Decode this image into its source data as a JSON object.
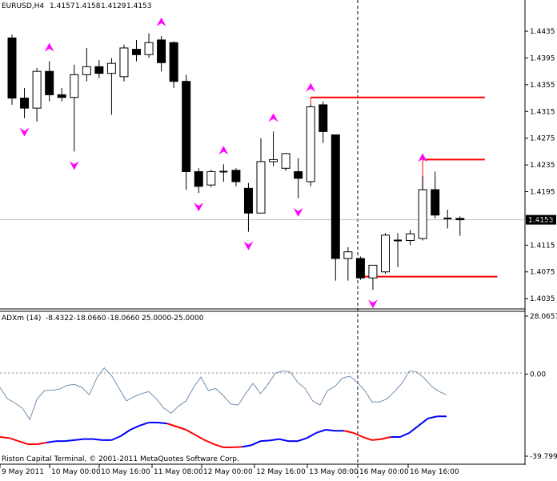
{
  "header": {
    "symbol": "EURUSD,H4",
    "ohlc": [
      "1.4157",
      "1.4158",
      "1.4129",
      "1.4153"
    ]
  },
  "indicator_header": {
    "name": "ADXm (14)",
    "values": [
      "-8.4322",
      "-18.0660",
      "-18.0660",
      "25.0000",
      "-25.0000"
    ]
  },
  "copyright": "Riston Capital Terminal, © 2001-2011 MetaQuotes Software Corp.",
  "colors": {
    "background": "#ffffff",
    "bull_candle": "#ffffff",
    "bear_candle": "#000000",
    "up_fractal": "#ff00ff",
    "down_fractal": "#ff00ff",
    "level_line": "#ff0000",
    "adx_thin": "#6f8fb0",
    "adx_up": "#0000ff",
    "adx_down": "#ff0000",
    "bid_line": "#c0c0c0",
    "price_label_bg": "#000000",
    "price_label_text": "#ffffff"
  },
  "chart_data": [
    {
      "type": "candlestick",
      "title": "EURUSD,H4",
      "ylim": [
        1.4022,
        1.4465
      ],
      "y_ticks": [
        "1.4435",
        "1.4395",
        "1.4355",
        "1.4315",
        "1.4275",
        "1.4235",
        "1.4195",
        "1.4155",
        "1.4115",
        "1.4075",
        "1.4035"
      ],
      "current_price": "1.4153",
      "x_ticks": [
        "9 May 2011",
        "10 May 00:00",
        "10 May 16:00",
        "11 May 08:00",
        "12 May 00:00",
        "12 May 16:00",
        "13 May 08:00",
        "16 May 00:00",
        "16 May 16:00"
      ],
      "candles": [
        {
          "o": 1.4425,
          "h": 1.443,
          "l": 1.4325,
          "c": 1.4335
        },
        {
          "o": 1.4335,
          "h": 1.435,
          "l": 1.4305,
          "c": 1.432
        },
        {
          "o": 1.432,
          "h": 1.438,
          "l": 1.43,
          "c": 1.4375
        },
        {
          "o": 1.4375,
          "h": 1.439,
          "l": 1.433,
          "c": 1.434
        },
        {
          "o": 1.434,
          "h": 1.435,
          "l": 1.433,
          "c": 1.4336
        },
        {
          "o": 1.4336,
          "h": 1.4385,
          "l": 1.4255,
          "c": 1.437
        },
        {
          "o": 1.437,
          "h": 1.441,
          "l": 1.436,
          "c": 1.4382
        },
        {
          "o": 1.4382,
          "h": 1.4392,
          "l": 1.4365,
          "c": 1.4372
        },
        {
          "o": 1.4372,
          "h": 1.4395,
          "l": 1.431,
          "c": 1.4387
        },
        {
          "o": 1.4367,
          "h": 1.4415,
          "l": 1.436,
          "c": 1.441
        },
        {
          "o": 1.4408,
          "h": 1.4422,
          "l": 1.439,
          "c": 1.44
        },
        {
          "o": 1.44,
          "h": 1.4432,
          "l": 1.4395,
          "c": 1.4418
        },
        {
          "o": 1.4422,
          "h": 1.4428,
          "l": 1.4375,
          "c": 1.4388
        },
        {
          "o": 1.4418,
          "h": 1.442,
          "l": 1.435,
          "c": 1.436
        },
        {
          "o": 1.436,
          "h": 1.437,
          "l": 1.4198,
          "c": 1.4225
        },
        {
          "o": 1.4225,
          "h": 1.423,
          "l": 1.4193,
          "c": 1.4203
        },
        {
          "o": 1.4205,
          "h": 1.4228,
          "l": 1.4202,
          "c": 1.4225
        },
        {
          "o": 1.4225,
          "h": 1.4236,
          "l": 1.421,
          "c": 1.4225
        },
        {
          "o": 1.4227,
          "h": 1.423,
          "l": 1.4203,
          "c": 1.421
        },
        {
          "o": 1.42,
          "h": 1.4208,
          "l": 1.4135,
          "c": 1.4163
        },
        {
          "o": 1.4163,
          "h": 1.4275,
          "l": 1.4163,
          "c": 1.424
        },
        {
          "o": 1.424,
          "h": 1.4285,
          "l": 1.4233,
          "c": 1.4243
        },
        {
          "o": 1.423,
          "h": 1.4253,
          "l": 1.4226,
          "c": 1.4252
        },
        {
          "o": 1.4225,
          "h": 1.4245,
          "l": 1.4185,
          "c": 1.4215
        },
        {
          "o": 1.421,
          "h": 1.4325,
          "l": 1.4203,
          "c": 1.4322
        },
        {
          "o": 1.4325,
          "h": 1.433,
          "l": 1.4268,
          "c": 1.4285
        },
        {
          "o": 1.428,
          "h": 1.428,
          "l": 1.4062,
          "c": 1.4095
        },
        {
          "o": 1.4095,
          "h": 1.4112,
          "l": 1.4062,
          "c": 1.4105
        },
        {
          "o": 1.4095,
          "h": 1.4098,
          "l": 1.4063,
          "c": 1.4066
        },
        {
          "o": 1.4066,
          "h": 1.4085,
          "l": 1.4048,
          "c": 1.4085
        },
        {
          "o": 1.4075,
          "h": 1.4133,
          "l": 1.4072,
          "c": 1.413
        },
        {
          "o": 1.4122,
          "h": 1.4133,
          "l": 1.4082,
          "c": 1.4122
        },
        {
          "o": 1.4122,
          "h": 1.4138,
          "l": 1.4115,
          "c": 1.4132
        },
        {
          "o": 1.4125,
          "h": 1.4218,
          "l": 1.4122,
          "c": 1.4198
        },
        {
          "o": 1.4198,
          "h": 1.4225,
          "l": 1.4155,
          "c": 1.416
        },
        {
          "o": 1.4155,
          "h": 1.4168,
          "l": 1.414,
          "c": 1.4155
        },
        {
          "o": 1.4155,
          "h": 1.4158,
          "l": 1.4129,
          "c": 1.4153
        }
      ],
      "fractals_up": [
        {
          "bar": 3,
          "price": 1.439
        },
        {
          "bar": 12,
          "price": 1.4428
        },
        {
          "bar": 17,
          "price": 1.4236
        },
        {
          "bar": 21,
          "price": 1.4285
        },
        {
          "bar": 24,
          "price": 1.433
        },
        {
          "bar": 33,
          "price": 1.4225
        }
      ],
      "fractals_down": [
        {
          "bar": 1,
          "price": 1.4305
        },
        {
          "bar": 5,
          "price": 1.4255
        },
        {
          "bar": 15,
          "price": 1.4193
        },
        {
          "bar": 19,
          "price": 1.4135
        },
        {
          "bar": 23,
          "price": 1.4185
        },
        {
          "bar": 29,
          "price": 1.4048
        }
      ],
      "levels": [
        {
          "price": 1.4336,
          "from_bar": 24,
          "to_bar": 38
        },
        {
          "price": 1.4243,
          "from_bar": 33,
          "to_bar": 38
        },
        {
          "price": 1.4068,
          "from_bar": 28,
          "to_bar": 39
        }
      ]
    },
    {
      "type": "line",
      "title": "ADXm (14)",
      "ylim": [
        -39.7993,
        28.0657
      ],
      "y_ticks": [
        "28.0657",
        "0.00",
        "-39.7993"
      ],
      "series": [
        {
          "style": "thin",
          "values": [
            -6.5,
            -12.0,
            -14.0,
            -16.5,
            -22.0,
            -12.0,
            -8.0,
            -7.8,
            -7.3,
            -5.5,
            -5.0,
            -6.5,
            -10.0,
            -2.0,
            3.0,
            -0.8,
            -7.0,
            -13.0,
            -11.0,
            -9.5,
            -8.5,
            -12.0,
            -16.5,
            -19.0,
            -15.5,
            -13.0,
            -6.5,
            -1.5,
            -8.0,
            -7.0,
            -10.5,
            -14.5,
            -15.0,
            -9.5,
            -4.5,
            -9.5,
            -5.0,
            0.5,
            1.5,
            1.0,
            -4.0,
            -7.0,
            -13.0,
            -15.0,
            -8.0,
            -6.0,
            -2.0,
            -1.0,
            -4.0,
            -8.0,
            -13.5,
            -13.5,
            -12.0,
            -8.5,
            -4.5,
            1.5,
            1.0,
            -2.0,
            -6.0,
            -8.5,
            -10.0
          ]
        },
        {
          "style": "colored",
          "values": [
            -30.5,
            -31.0,
            -32.5,
            -34.0,
            -34.0,
            -33.2,
            -32.5,
            -32.5,
            -32.0,
            -31.5,
            -31.5,
            -32.0,
            -32.0,
            -30.0,
            -27.0,
            -25.0,
            -23.5,
            -23.5,
            -24.0,
            -25.5,
            -27.0,
            -29.5,
            -32.0,
            -34.0,
            -35.5,
            -35.5,
            -35.3,
            -34.5,
            -32.5,
            -32.2,
            -31.5,
            -32.5,
            -32.5,
            -31.0,
            -28.5,
            -27.0,
            -27.5,
            -27.5,
            -28.5,
            -30.5,
            -32.0,
            -31.5,
            -30.5,
            -30.5,
            -28.5,
            -25.0,
            -21.5,
            -20.5,
            -20.5
          ],
          "direction": [
            "down",
            "down",
            "down",
            "down",
            "down",
            "up",
            "up",
            "up",
            "up",
            "up",
            "up",
            "up",
            "up",
            "up",
            "up",
            "up",
            "up",
            "up",
            "down",
            "down",
            "down",
            "down",
            "down",
            "down",
            "down",
            "down",
            "up",
            "up",
            "up",
            "up",
            "up",
            "up",
            "up",
            "up",
            "up",
            "up",
            "up",
            "down",
            "down",
            "down",
            "down",
            "down",
            "up",
            "up",
            "up",
            "up",
            "up",
            "up",
            "down"
          ]
        }
      ]
    }
  ]
}
